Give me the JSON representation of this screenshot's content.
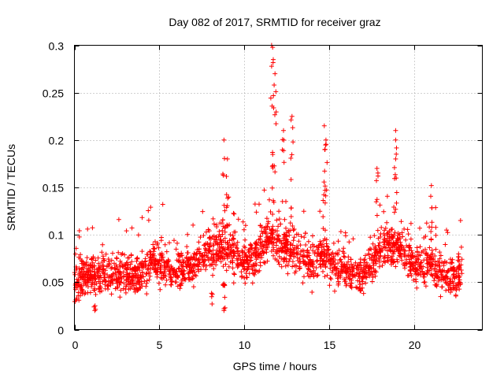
{
  "chart_data": {
    "type": "scatter",
    "title": "Day 082 of 2017, SRMTID for receiver graz",
    "xlabel": "GPS time / hours",
    "ylabel": "SRMTID / TECUs",
    "xlim": [
      0,
      24.0
    ],
    "ylim": [
      0,
      0.3
    ],
    "xticks": [
      0,
      5,
      10,
      15,
      20
    ],
    "xtick_labels": [
      "0",
      "5",
      "10",
      "15",
      "20"
    ],
    "yticks": [
      0,
      0.05,
      0.1,
      0.15,
      0.2,
      0.25,
      0.3
    ],
    "ytick_labels": [
      "0",
      "0.05",
      "0.1",
      "0.15",
      "0.2",
      "0.25",
      "0.3"
    ],
    "grid": true,
    "marker": "+",
    "color": "#ff0000",
    "series": [
      {
        "name": "SRMTID",
        "envelope": {
          "x": [
            0,
            0.5,
            1,
            1.5,
            2,
            3,
            4,
            4.5,
            5,
            5.5,
            6,
            6.5,
            7,
            7.5,
            8,
            8.5,
            9,
            9.5,
            10,
            10.5,
            11,
            11.5,
            12,
            12.5,
            13,
            13.5,
            14,
            14.5,
            15,
            15.5,
            16,
            16.5,
            17,
            17.5,
            18,
            18.5,
            19,
            19.5,
            20,
            20.5,
            21,
            21.5,
            22,
            22.5,
            22.8
          ],
          "y": [
            0.05,
            0.055,
            0.058,
            0.06,
            0.058,
            0.058,
            0.06,
            0.07,
            0.068,
            0.065,
            0.062,
            0.065,
            0.07,
            0.075,
            0.085,
            0.09,
            0.085,
            0.08,
            0.07,
            0.075,
            0.085,
            0.1,
            0.09,
            0.085,
            0.08,
            0.075,
            0.07,
            0.08,
            0.075,
            0.065,
            0.06,
            0.058,
            0.06,
            0.07,
            0.085,
            0.09,
            0.085,
            0.08,
            0.07,
            0.065,
            0.07,
            0.06,
            0.055,
            0.055,
            0.06
          ],
          "spread": 0.025
        },
        "spikes": [
          {
            "x": 8.8,
            "y": 0.2
          },
          {
            "x": 9.0,
            "y": 0.18
          },
          {
            "x": 11.6,
            "y": 0.3
          },
          {
            "x": 11.7,
            "y": 0.285
          },
          {
            "x": 11.8,
            "y": 0.27
          },
          {
            "x": 12.3,
            "y": 0.21
          },
          {
            "x": 12.8,
            "y": 0.225
          },
          {
            "x": 14.7,
            "y": 0.215
          },
          {
            "x": 14.8,
            "y": 0.2
          },
          {
            "x": 18.9,
            "y": 0.21
          },
          {
            "x": 18.9,
            "y": 0.2
          },
          {
            "x": 17.8,
            "y": 0.17
          },
          {
            "x": 21.0,
            "y": 0.152
          },
          {
            "x": 8.1,
            "y": 0.027
          },
          {
            "x": 8.8,
            "y": 0.02
          },
          {
            "x": 1.2,
            "y": 0.02
          }
        ]
      }
    ]
  }
}
